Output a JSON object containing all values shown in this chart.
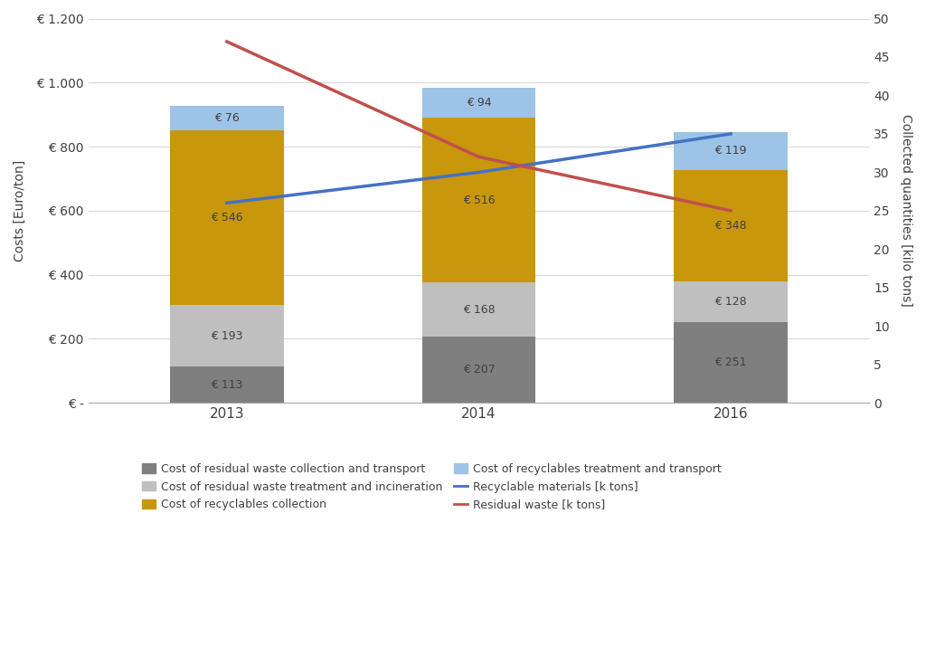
{
  "years": [
    2013,
    2014,
    2016
  ],
  "year_labels": [
    "2013",
    "2014",
    "2016"
  ],
  "bar_width": 0.45,
  "segments": {
    "residual_collection": [
      113,
      207,
      251
    ],
    "residual_treatment": [
      193,
      168,
      128
    ],
    "recyclables_collection": [
      546,
      516,
      348
    ],
    "recyclables_treatment": [
      76,
      94,
      119
    ]
  },
  "segment_colors": {
    "residual_collection": "#7f7f7f",
    "residual_treatment": "#bfbfbf",
    "recyclables_collection": "#c8970c",
    "recyclables_treatment": "#9dc3e6"
  },
  "line_recyclable": [
    26,
    30,
    35
  ],
  "line_residual": [
    47,
    32,
    25
  ],
  "line_recyclable_color": "#4472c4",
  "line_residual_color": "#c0504d",
  "ylim_left": [
    0,
    1200
  ],
  "ylim_right": [
    0,
    50
  ],
  "yticks_left": [
    0,
    200,
    400,
    600,
    800,
    1000,
    1200
  ],
  "ytick_labels_left": [
    "€ -",
    "€ 200",
    "€ 400",
    "€ 600",
    "€ 800",
    "€ 1.000",
    "€ 1.200"
  ],
  "yticks_right": [
    0,
    5,
    10,
    15,
    20,
    25,
    30,
    35,
    40,
    45,
    50
  ],
  "ylabel_left": "Costs [Euro/ton]",
  "ylabel_right": "Collected quantities [kilo tons]",
  "background_color": "#ffffff",
  "plot_bg_color": "#f2f2f2",
  "grid_color": "#ffffff",
  "legend_items_col1": [
    {
      "label": "Cost of residual waste collection and transport",
      "color": "#7f7f7f",
      "type": "bar"
    },
    {
      "label": "Cost of recyclables collection",
      "color": "#c8970c",
      "type": "bar"
    },
    {
      "label": "Recyclable materials [k tons]",
      "color": "#4472c4",
      "type": "line"
    }
  ],
  "legend_items_col2": [
    {
      "label": "Cost of residual waste treatment and incineration",
      "color": "#bfbfbf",
      "type": "bar"
    },
    {
      "label": "Cost of recyclables treatment and transport",
      "color": "#9dc3e6",
      "type": "bar"
    },
    {
      "label": "Residual waste [k tons]",
      "color": "#c0504d",
      "type": "line"
    }
  ],
  "annotation_fontsize": 9,
  "axis_label_fontsize": 10,
  "tick_fontsize": 10,
  "legend_fontsize": 9
}
